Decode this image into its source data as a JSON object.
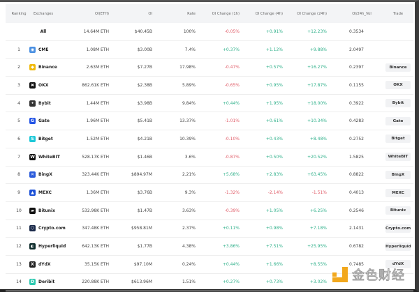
{
  "headers": {
    "ranking": "Ranking",
    "exchanges": "Exchanges",
    "oi_eth": "OI(ETH)",
    "oi": "OI",
    "rate": "Rate",
    "ch1h": "OI Change (1h)",
    "ch4h": "OI Change (4h)",
    "ch24h": "OI Change (24h)",
    "vol": "OI/24h_Vol",
    "trade": "Trade"
  },
  "total": {
    "name": "All",
    "oi_eth": "14.64M ETH",
    "oi": "$40.45B",
    "rate": "100%",
    "ch1h": "-0.05%",
    "ch4h": "+0.91%",
    "ch24h": "+12.23%",
    "vol": "0.3534"
  },
  "rows": [
    {
      "rank": "1",
      "name": "CME",
      "icon": "cme-icon",
      "color": "#4a90e2",
      "oi_eth": "1.08M ETH",
      "oi": "$3.00B",
      "rate": "7.4%",
      "ch1h": "+0.37%",
      "ch4h": "+1.12%",
      "ch24h": "+9.88%",
      "vol": "2.0497",
      "trade": ""
    },
    {
      "rank": "2",
      "name": "Binance",
      "icon": "binance-icon",
      "color": "#f0b90b",
      "oi_eth": "2.63M ETH",
      "oi": "$7.27B",
      "rate": "17.98%",
      "ch1h": "-0.47%",
      "ch4h": "+0.57%",
      "ch24h": "+16.27%",
      "vol": "0.2397",
      "trade": "Binance"
    },
    {
      "rank": "3",
      "name": "OKX",
      "icon": "okx-icon",
      "color": "#111111",
      "oi_eth": "862.61K ETH",
      "oi": "$2.38B",
      "rate": "5.89%",
      "ch1h": "-0.65%",
      "ch4h": "+0.95%",
      "ch24h": "+17.87%",
      "vol": "0.1155",
      "trade": "OKX"
    },
    {
      "rank": "4",
      "name": "Bybit",
      "icon": "bybit-icon",
      "color": "#333333",
      "oi_eth": "1.44M ETH",
      "oi": "$3.98B",
      "rate": "9.84%",
      "ch1h": "+0.44%",
      "ch4h": "+1.95%",
      "ch24h": "+18.00%",
      "vol": "0.3922",
      "trade": "Bybit"
    },
    {
      "rank": "5",
      "name": "Gate",
      "icon": "gate-icon",
      "color": "#2354e6",
      "oi_eth": "1.96M ETH",
      "oi": "$5.41B",
      "rate": "13.37%",
      "ch1h": "-1.01%",
      "ch4h": "+0.61%",
      "ch24h": "+10.34%",
      "vol": "0.4283",
      "trade": "Gate"
    },
    {
      "rank": "6",
      "name": "Bitget",
      "icon": "bitget-icon",
      "color": "#1dc8d8",
      "oi_eth": "1.52M ETH",
      "oi": "$4.21B",
      "rate": "10.39%",
      "ch1h": "-0.10%",
      "ch4h": "+0.43%",
      "ch24h": "+8.48%",
      "vol": "0.2752",
      "trade": "Bitget"
    },
    {
      "rank": "7",
      "name": "WhiteBIT",
      "icon": "whitebit-icon",
      "color": "#111111",
      "oi_eth": "528.17K ETH",
      "oi": "$1.46B",
      "rate": "3.6%",
      "ch1h": "-0.87%",
      "ch4h": "+0.50%",
      "ch24h": "+20.52%",
      "vol": "1.5825",
      "trade": "WhiteBIT"
    },
    {
      "rank": "8",
      "name": "BingX",
      "icon": "bingx-icon",
      "color": "#2a5ada",
      "oi_eth": "323.44K ETH",
      "oi": "$894.97M",
      "rate": "2.21%",
      "ch1h": "+5.68%",
      "ch4h": "+2.83%",
      "ch24h": "+63.45%",
      "vol": "0.8822",
      "trade": "BingX"
    },
    {
      "rank": "9",
      "name": "MEXC",
      "icon": "mexc-icon",
      "color": "#1a4fd6",
      "oi_eth": "1.36M ETH",
      "oi": "$3.76B",
      "rate": "9.3%",
      "ch1h": "-1.32%",
      "ch4h": "-2.14%",
      "ch24h": "-1.51%",
      "vol": "0.4013",
      "trade": "MEXC"
    },
    {
      "rank": "10",
      "name": "Bitunix",
      "icon": "bitunix-icon",
      "color": "#111111",
      "oi_eth": "532.98K ETH",
      "oi": "$1.47B",
      "rate": "3.63%",
      "ch1h": "-0.39%",
      "ch4h": "+1.05%",
      "ch24h": "+6.25%",
      "vol": "0.2546",
      "trade": "Bitunix"
    },
    {
      "rank": "11",
      "name": "Crypto.com",
      "icon": "crypto-com-icon",
      "color": "#1b2a4a",
      "oi_eth": "347.48K ETH",
      "oi": "$958.81M",
      "rate": "2.37%",
      "ch1h": "+0.11%",
      "ch4h": "+0.98%",
      "ch24h": "+7.18%",
      "vol": "2.1431",
      "trade": "Crypto.com"
    },
    {
      "rank": "12",
      "name": "Hyperliquid",
      "icon": "hyperliquid-icon",
      "color": "#0d2b2b",
      "oi_eth": "642.13K ETH",
      "oi": "$1.77B",
      "rate": "4.38%",
      "ch1h": "+3.86%",
      "ch4h": "+7.51%",
      "ch24h": "+25.95%",
      "vol": "0.6782",
      "trade": "Hyperliquid"
    },
    {
      "rank": "13",
      "name": "dYdX",
      "icon": "dydx-icon",
      "color": "#222222",
      "oi_eth": "35.15K ETH",
      "oi": "$97.10M",
      "rate": "0.24%",
      "ch1h": "+0.44%",
      "ch4h": "+1.66%",
      "ch24h": "+8.55%",
      "vol": "0.7485",
      "trade": "dYdX"
    },
    {
      "rank": "14",
      "name": "Deribit",
      "icon": "deribit-icon",
      "color": "#2ec9b0",
      "oi_eth": "220.88K ETH",
      "oi": "$613.96M",
      "rate": "1.51%",
      "ch1h": "+0.27%",
      "ch4h": "+0.73%",
      "ch24h": "+3.02%",
      "vol": "",
      "trade": ""
    }
  ],
  "colors": {
    "positive": "#2fb08a",
    "negative": "#e05a66"
  },
  "watermark": {
    "text": "金色财经"
  }
}
